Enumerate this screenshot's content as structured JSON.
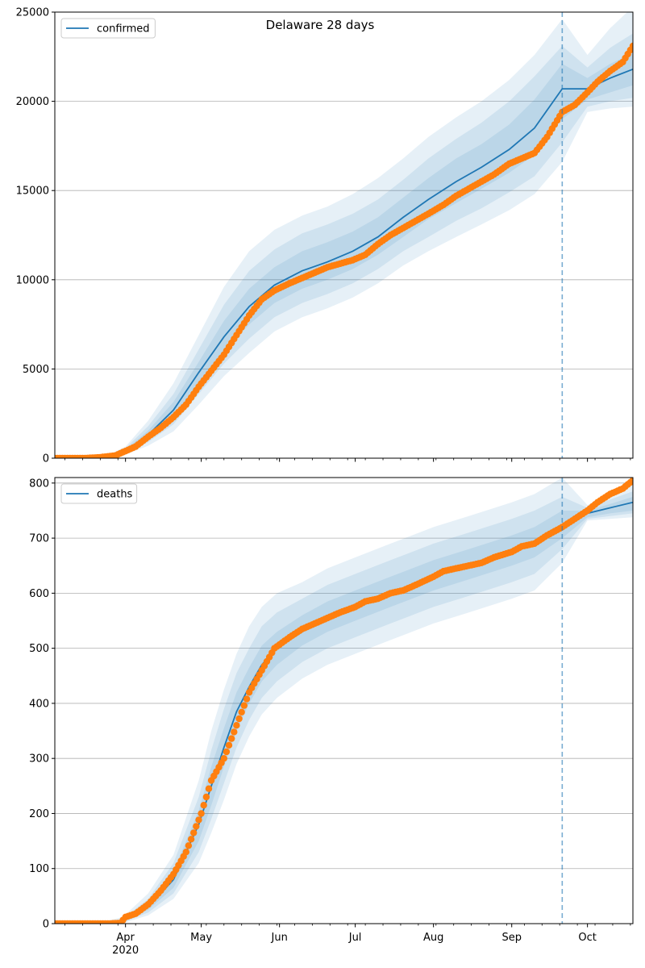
{
  "figure": {
    "title": "Delaware 28 days",
    "year_label": "2020",
    "month_labels": [
      "Apr",
      "May",
      "Jun",
      "Jul",
      "Aug",
      "Sep",
      "Oct"
    ]
  },
  "colors": {
    "model_line": "#1f77b4",
    "band_fill": "#1f77b4",
    "observed": "#ff7f0e",
    "forecast_start_line": "#1f77b4",
    "grid": "#b0b0b0"
  },
  "chart_data": [
    {
      "type": "line",
      "name": "confirmed",
      "x_axis": {
        "type": "date",
        "start": "2020-03-04",
        "end": "2020-10-19",
        "month_ticks": [
          "2020-04-01",
          "2020-05-01",
          "2020-06-01",
          "2020-07-01",
          "2020-08-01",
          "2020-09-01",
          "2020-10-01"
        ]
      },
      "ylim": [
        0,
        25000
      ],
      "yticks": [
        0,
        5000,
        10000,
        15000,
        20000,
        25000
      ],
      "grid": "horizontal",
      "legend": {
        "entries": [
          "confirmed"
        ],
        "placement": "top-left"
      },
      "forecast_start": "2020-09-21",
      "model_median": {
        "x": [
          "2020-03-04",
          "2020-03-15",
          "2020-03-25",
          "2020-04-01",
          "2020-04-10",
          "2020-04-20",
          "2020-04-30",
          "2020-05-10",
          "2020-05-20",
          "2020-05-30",
          "2020-06-10",
          "2020-06-20",
          "2020-06-30",
          "2020-07-10",
          "2020-07-20",
          "2020-07-30",
          "2020-08-10",
          "2020-08-20",
          "2020-08-31",
          "2020-09-10",
          "2020-09-21",
          "2020-10-01",
          "2020-10-10",
          "2020-10-19"
        ],
        "y": [
          0,
          0,
          100,
          400,
          1300,
          2700,
          4800,
          6800,
          8500,
          9700,
          10500,
          11000,
          11600,
          12400,
          13500,
          14500,
          15500,
          16300,
          17300,
          18500,
          20700,
          20700,
          21300,
          21800
        ]
      },
      "bands": [
        {
          "level": "inner",
          "lower": [
            0,
            0,
            80,
            320,
            1100,
            2300,
            4200,
            6000,
            7500,
            8700,
            9500,
            10000,
            10600,
            11400,
            12400,
            13400,
            14300,
            15100,
            16000,
            17000,
            19000,
            20100,
            20500,
            20900
          ],
          "upper": [
            0,
            0,
            120,
            480,
            1550,
            3150,
            5400,
            7700,
            9500,
            10700,
            11600,
            12100,
            12700,
            13500,
            14600,
            15700,
            16800,
            17600,
            18700,
            20100,
            22100,
            21300,
            22100,
            22700
          ]
        },
        {
          "level": "middle",
          "lower": [
            0,
            0,
            60,
            260,
            900,
            1900,
            3600,
            5300,
            6700,
            7900,
            8700,
            9200,
            9800,
            10600,
            11600,
            12400,
            13300,
            14000,
            14900,
            15800,
            17700,
            19700,
            20000,
            20200
          ],
          "upper": [
            0,
            0,
            140,
            560,
            1800,
            3600,
            6100,
            8600,
            10500,
            11700,
            12600,
            13100,
            13700,
            14500,
            15600,
            16800,
            17900,
            18800,
            20000,
            21400,
            23100,
            21900,
            23000,
            23800
          ]
        },
        {
          "level": "outer",
          "lower": [
            0,
            0,
            40,
            200,
            700,
            1500,
            3000,
            4600,
            5900,
            7100,
            7900,
            8400,
            9000,
            9800,
            10800,
            11600,
            12400,
            13100,
            13900,
            14800,
            16600,
            19400,
            19600,
            19700
          ],
          "upper": [
            0,
            0,
            170,
            650,
            2100,
            4200,
            6900,
            9600,
            11600,
            12800,
            13600,
            14100,
            14800,
            15700,
            16800,
            18000,
            19100,
            20000,
            21200,
            22600,
            24600,
            22600,
            24100,
            25300
          ]
        }
      ],
      "observed": {
        "x": [
          "2020-03-04",
          "2020-03-10",
          "2020-03-16",
          "2020-03-22",
          "2020-03-28",
          "2020-04-01",
          "2020-04-05",
          "2020-04-10",
          "2020-04-15",
          "2020-04-20",
          "2020-04-25",
          "2020-04-30",
          "2020-05-05",
          "2020-05-10",
          "2020-05-15",
          "2020-05-20",
          "2020-05-25",
          "2020-05-30",
          "2020-06-05",
          "2020-06-10",
          "2020-06-15",
          "2020-06-20",
          "2020-06-25",
          "2020-06-30",
          "2020-07-05",
          "2020-07-10",
          "2020-07-15",
          "2020-07-20",
          "2020-07-25",
          "2020-07-30",
          "2020-08-05",
          "2020-08-10",
          "2020-08-15",
          "2020-08-20",
          "2020-08-25",
          "2020-08-31",
          "2020-09-05",
          "2020-09-10",
          "2020-09-15",
          "2020-09-21",
          "2020-09-26",
          "2020-10-01",
          "2020-10-05",
          "2020-10-10",
          "2020-10-15",
          "2020-10-19"
        ],
        "y": [
          0,
          0,
          0,
          50,
          150,
          400,
          650,
          1200,
          1700,
          2300,
          3000,
          4000,
          4900,
          5800,
          6900,
          8000,
          8900,
          9400,
          9800,
          10100,
          10400,
          10700,
          10900,
          11100,
          11400,
          12000,
          12500,
          12900,
          13300,
          13700,
          14200,
          14700,
          15100,
          15500,
          15900,
          16500,
          16800,
          17100,
          18000,
          19400,
          19800,
          20500,
          21100,
          21700,
          22200,
          23100
        ]
      }
    },
    {
      "type": "line",
      "name": "deaths",
      "x_axis": {
        "type": "date",
        "start": "2020-03-04",
        "end": "2020-10-19",
        "month_ticks": [
          "2020-04-01",
          "2020-05-01",
          "2020-06-01",
          "2020-07-01",
          "2020-08-01",
          "2020-09-01",
          "2020-10-01"
        ]
      },
      "ylim": [
        0,
        810
      ],
      "yticks": [
        0,
        100,
        200,
        300,
        400,
        500,
        600,
        700,
        800
      ],
      "grid": "horizontal",
      "legend": {
        "entries": [
          "deaths"
        ],
        "placement": "top-left"
      },
      "forecast_start": "2020-09-21",
      "model_median": {
        "x": [
          "2020-03-04",
          "2020-03-20",
          "2020-03-31",
          "2020-04-10",
          "2020-04-20",
          "2020-04-30",
          "2020-05-05",
          "2020-05-10",
          "2020-05-15",
          "2020-05-20",
          "2020-05-25",
          "2020-05-31",
          "2020-06-10",
          "2020-06-20",
          "2020-07-01",
          "2020-07-15",
          "2020-08-01",
          "2020-08-15",
          "2020-09-01",
          "2020-09-10",
          "2020-09-21",
          "2020-10-01",
          "2020-10-10",
          "2020-10-19"
        ],
        "y": [
          0,
          0,
          5,
          30,
          80,
          180,
          250,
          320,
          385,
          430,
          470,
          500,
          530,
          555,
          575,
          600,
          630,
          650,
          675,
          690,
          720,
          745,
          755,
          765
        ]
      },
      "bands": [
        {
          "level": "inner",
          "lower": [
            0,
            0,
            3,
            25,
            65,
            150,
            215,
            285,
            350,
            400,
            440,
            470,
            505,
            530,
            550,
            575,
            605,
            625,
            650,
            665,
            700,
            738,
            745,
            750
          ],
          "upper": [
            0,
            0,
            7,
            38,
            95,
            205,
            285,
            355,
            420,
            465,
            505,
            530,
            560,
            585,
            605,
            630,
            660,
            680,
            705,
            720,
            750,
            750,
            762,
            775
          ]
        },
        {
          "level": "middle",
          "lower": [
            0,
            0,
            2,
            20,
            55,
            130,
            190,
            255,
            320,
            370,
            410,
            440,
            475,
            500,
            520,
            545,
            575,
            595,
            620,
            635,
            680,
            735,
            740,
            745
          ],
          "upper": [
            0,
            0,
            9,
            45,
            110,
            230,
            315,
            390,
            455,
            500,
            540,
            565,
            590,
            615,
            635,
            660,
            690,
            710,
            735,
            750,
            775,
            755,
            770,
            785
          ]
        },
        {
          "level": "outer",
          "lower": [
            0,
            0,
            1,
            15,
            45,
            110,
            165,
            225,
            290,
            340,
            380,
            410,
            445,
            470,
            490,
            515,
            545,
            565,
            590,
            605,
            655,
            732,
            735,
            738
          ],
          "upper": [
            0,
            0,
            12,
            55,
            125,
            260,
            350,
            425,
            490,
            540,
            575,
            600,
            620,
            645,
            665,
            690,
            720,
            740,
            765,
            780,
            810,
            760,
            780,
            800
          ]
        }
      ],
      "observed": {
        "x": [
          "2020-03-04",
          "2020-03-15",
          "2020-03-25",
          "2020-03-30",
          "2020-04-01",
          "2020-04-05",
          "2020-04-10",
          "2020-04-15",
          "2020-04-20",
          "2020-04-25",
          "2020-04-28",
          "2020-05-01",
          "2020-05-05",
          "2020-05-10",
          "2020-05-15",
          "2020-05-20",
          "2020-05-25",
          "2020-05-30",
          "2020-06-05",
          "2020-06-10",
          "2020-06-15",
          "2020-06-20",
          "2020-06-25",
          "2020-07-01",
          "2020-07-05",
          "2020-07-10",
          "2020-07-15",
          "2020-07-20",
          "2020-07-25",
          "2020-08-01",
          "2020-08-05",
          "2020-08-10",
          "2020-08-15",
          "2020-08-20",
          "2020-08-25",
          "2020-09-01",
          "2020-09-05",
          "2020-09-10",
          "2020-09-15",
          "2020-09-21",
          "2020-09-26",
          "2020-10-01",
          "2020-10-05",
          "2020-10-10",
          "2020-10-15",
          "2020-10-19"
        ],
        "y": [
          0,
          0,
          0,
          1,
          12,
          18,
          35,
          60,
          90,
          130,
          165,
          200,
          260,
          300,
          360,
          420,
          460,
          500,
          520,
          535,
          545,
          555,
          565,
          575,
          585,
          590,
          600,
          605,
          615,
          630,
          640,
          645,
          650,
          655,
          665,
          675,
          685,
          690,
          705,
          720,
          735,
          750,
          765,
          780,
          790,
          805
        ]
      }
    }
  ]
}
